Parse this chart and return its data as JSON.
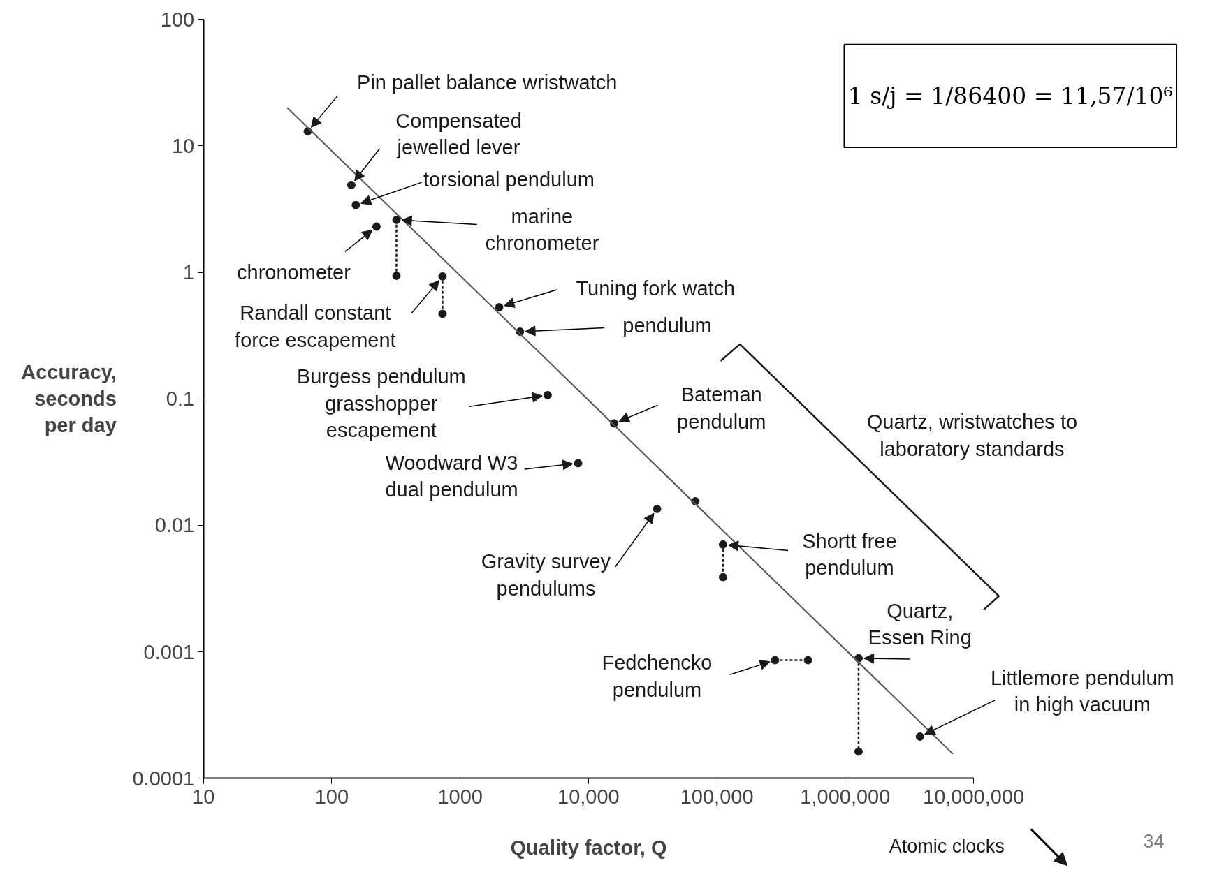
{
  "chart_data": {
    "type": "scatter",
    "xlabel": "Quality factor, Q",
    "ylabel": "Accuracy,\nseconds\nper day",
    "log": "xy",
    "grid": false,
    "marker": "circle",
    "xlim": [
      10,
      10000000
    ],
    "ylim": [
      0.0001,
      100
    ],
    "xticks": [
      10,
      100,
      1000,
      {
        "value": 10000,
        "label": "10,000"
      },
      {
        "value": 100000,
        "label": "100,000"
      },
      {
        "value": 1000000,
        "label": "1,000,000"
      },
      {
        "value": 10000000,
        "label": "10,000,000"
      }
    ],
    "yticks": [
      0.0001,
      0.001,
      0.01,
      0.1,
      1,
      10,
      100
    ],
    "series": [
      {
        "color": "#1a1a1a",
        "x": [
          65,
          142,
          154,
          223,
          2015,
          2925,
          4800,
          15850,
          8300,
          34200,
          68000,
          3820000
        ],
        "values": [
          13,
          4.9,
          3.4,
          2.3,
          0.53,
          0.34,
          0.107,
          0.064,
          0.031,
          0.0135,
          0.0155,
          0.000214
        ]
      },
      {
        "type": "line",
        "line_style": "dashed",
        "marker": "circle",
        "color": "#1a1a1a",
        "x": [
          319,
          319
        ],
        "values": [
          2.6,
          0.94
        ]
      },
      {
        "type": "line",
        "line_style": "dashed",
        "marker": "circle",
        "color": "#1a1a1a",
        "x": [
          729,
          729
        ],
        "values": [
          0.93,
          0.47
        ]
      },
      {
        "type": "line",
        "line_style": "dashed",
        "marker": "circle",
        "color": "#1a1a1a",
        "x": [
          111600,
          111600
        ],
        "values": [
          0.00706,
          0.0039
        ]
      },
      {
        "type": "line",
        "line_style": "dashed",
        "marker": "circle",
        "color": "#1a1a1a",
        "x": [
          284000,
          513000
        ],
        "values": [
          0.00086,
          0.00086
        ]
      },
      {
        "type": "line",
        "line_style": "dashed",
        "marker": "circle",
        "color": "#1a1a1a",
        "x": [
          1270000,
          1270000
        ],
        "values": [
          0.00089,
          0.000163
        ]
      },
      {
        "type": "line",
        "line_style": "solid",
        "marker": "none",
        "color": "#555555",
        "x": [
          45,
          6900000
        ],
        "values": [
          20,
          0.000156
        ]
      }
    ],
    "annotations": [
      {
        "text": "Pin pallet balance wristwatch",
        "x": 65,
        "y": 13
      },
      {
        "text": "Compensated\njewelled lever",
        "x": 142,
        "y": 4.9
      },
      {
        "text": "torsional pendulum",
        "x": 154,
        "y": 3.4
      },
      {
        "text": "chronometer",
        "x": 223,
        "y": 2.3
      },
      {
        "text": "marine\nchronometer",
        "x": 319,
        "y": 2.6
      },
      {
        "text": "Randall constant\nforce escapement",
        "x": 729,
        "y": 0.93
      },
      {
        "text": "Tuning fork watch",
        "x": 2015,
        "y": 0.53
      },
      {
        "text": "pendulum",
        "x": 2925,
        "y": 0.34
      },
      {
        "text": "Burgess pendulum\ngrasshopper\nescapement",
        "x": 4800,
        "y": 0.107
      },
      {
        "text": "Bateman\npendulum",
        "x": 15850,
        "y": 0.064
      },
      {
        "text": "Woodward W3\ndual pendulum",
        "x": 8300,
        "y": 0.031
      },
      {
        "text": "Gravity survey\npendulums",
        "x": 34200,
        "y": 0.0135
      },
      {
        "text": "Shortt free\npendulum",
        "x": 111600,
        "y": 0.00706
      },
      {
        "text": "Quartz,\nEssen Ring",
        "x": 1270000,
        "y": 0.00089
      },
      {
        "text": "Fedchencko\npendulum",
        "x": 284000,
        "y": 0.00086
      },
      {
        "text": "Littlemore pendulum\nin high vacuum",
        "x": 3820000,
        "y": 0.000214
      },
      "Quartz, wristwatches to\nlaboratory standards",
      "1 s/j = 1/86400 = 11,57/10⁶",
      "Atomic clocks",
      "34"
    ]
  }
}
